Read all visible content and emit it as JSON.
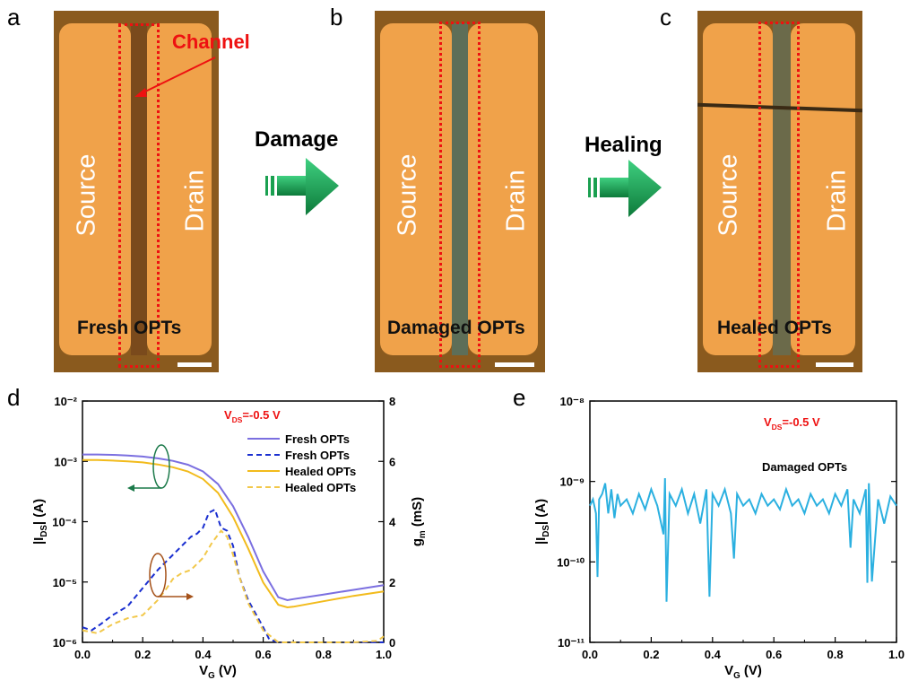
{
  "panels": {
    "a": {
      "letter": "a",
      "source": "Source",
      "drain": "Drain",
      "caption": "Fresh OPTs",
      "channel_label": "Channel"
    },
    "b": {
      "letter": "b",
      "source": "Source",
      "drain": "Drain",
      "caption": "Damaged OPTs"
    },
    "c": {
      "letter": "c",
      "source": "Source",
      "drain": "Drain",
      "caption": "Healed OPTs"
    },
    "d": {
      "letter": "d"
    },
    "e": {
      "letter": "e"
    }
  },
  "arrows": {
    "damage": "Damage",
    "healing": "Healing"
  },
  "colors": {
    "photo_pad": "#f0a24a",
    "photo_bg": "#8a5a1e",
    "frame": "#ee1111",
    "arrow": "#1aa050",
    "fresh": "#7b6fe0",
    "fresh_gm": "#1a2fd0",
    "healed": "#f2bb1c",
    "healed_gm": "#f2c84a",
    "damaged": "#2bb0e0"
  },
  "chart_data": [
    {
      "type": "line",
      "annotation": "V_DS=-0.5 V",
      "xlabel": "V_G (V)",
      "ylabel_left": "|I_DS| (A)",
      "ylabel_right": "g_m (mS)",
      "xlim": [
        0,
        1.0
      ],
      "ylim_left": [
        1e-06,
        0.01
      ],
      "ylim_right": [
        0,
        8
      ],
      "y_scale_left": "log",
      "x_ticks": [
        "0.0",
        "0.2",
        "0.4",
        "0.6",
        "0.8",
        "1.0"
      ],
      "y_ticks_left": [
        "10⁻⁶",
        "10⁻⁵",
        "10⁻⁴",
        "10⁻³",
        "10⁻²"
      ],
      "y_ticks_right": [
        "0",
        "2",
        "4",
        "6",
        "8"
      ],
      "legend_position": "top-right",
      "series": [
        {
          "name": "Fresh OPTs",
          "axis": "left",
          "style": "solid",
          "color": "#7b6fe0",
          "x": [
            0,
            0.05,
            0.1,
            0.15,
            0.2,
            0.25,
            0.3,
            0.35,
            0.4,
            0.45,
            0.5,
            0.55,
            0.6,
            0.65,
            0.68,
            0.7,
            0.8,
            0.9,
            1.0
          ],
          "y": [
            0.0013,
            0.0013,
            0.00128,
            0.00125,
            0.0012,
            0.00112,
            0.00102,
            0.00088,
            0.00068,
            0.00042,
            0.00018,
            5.6e-05,
            1.5e-05,
            5.6e-06,
            5e-06,
            5.2e-06,
            6.2e-06,
            7.4e-06,
            8.9e-06
          ]
        },
        {
          "name": "Fresh OPTs",
          "axis": "right",
          "style": "dashed",
          "color": "#1a2fd0",
          "x": [
            0,
            0.03,
            0.06,
            0.1,
            0.15,
            0.2,
            0.25,
            0.28,
            0.3,
            0.33,
            0.36,
            0.38,
            0.4,
            0.42,
            0.44,
            0.46,
            0.48,
            0.5,
            0.52,
            0.55,
            0.6,
            0.62,
            0.65,
            1.0
          ],
          "y": [
            0.5,
            0.4,
            0.6,
            0.9,
            1.2,
            1.8,
            2.4,
            2.7,
            2.9,
            3.2,
            3.5,
            3.6,
            3.8,
            4.3,
            4.4,
            3.8,
            3.7,
            3.2,
            2.2,
            1.4,
            0.5,
            0.1,
            0,
            0
          ]
        },
        {
          "name": "Healed OPTs",
          "axis": "left",
          "style": "solid",
          "color": "#f2bb1c",
          "x": [
            0,
            0.05,
            0.1,
            0.15,
            0.2,
            0.25,
            0.3,
            0.35,
            0.4,
            0.45,
            0.5,
            0.55,
            0.6,
            0.65,
            0.68,
            0.7,
            0.8,
            0.9,
            1.0
          ],
          "y": [
            0.00105,
            0.00105,
            0.00103,
            0.001,
            0.00096,
            0.00089,
            0.0008,
            0.00068,
            0.00051,
            0.0003,
            0.00012,
            3.6e-05,
            9.8e-06,
            4.2e-06,
            3.8e-06,
            3.9e-06,
            4.8e-06,
            5.9e-06,
            7e-06
          ]
        },
        {
          "name": "Healed OPTs",
          "axis": "right",
          "style": "dashed",
          "color": "#f2c84a",
          "x": [
            0,
            0.05,
            0.1,
            0.15,
            0.2,
            0.25,
            0.28,
            0.3,
            0.33,
            0.36,
            0.4,
            0.43,
            0.46,
            0.48,
            0.5,
            0.52,
            0.55,
            0.6,
            0.65,
            0.7,
            0.8,
            0.9,
            0.98,
            1.0
          ],
          "y": [
            0.4,
            0.3,
            0.6,
            0.8,
            0.9,
            1.4,
            1.8,
            2.1,
            2.3,
            2.4,
            2.8,
            3.3,
            3.7,
            3.5,
            2.9,
            2.2,
            1.3,
            0.4,
            0,
            0,
            0,
            0,
            0.05,
            0.2
          ]
        }
      ]
    },
    {
      "type": "line",
      "annotation": "V_DS=-0.5 V",
      "inner_label": "Damaged OPTs",
      "xlabel": "V_G (V)",
      "ylabel": "|I_DS| (A)",
      "xlim": [
        0,
        1.0
      ],
      "ylim": [
        1e-11,
        1e-08
      ],
      "y_scale": "log",
      "x_ticks": [
        "0.0",
        "0.2",
        "0.4",
        "0.6",
        "0.8",
        "1.0"
      ],
      "y_ticks": [
        "10⁻¹¹",
        "10⁻¹⁰",
        "10⁻⁹",
        "10⁻⁸"
      ],
      "series": [
        {
          "name": "Damaged OPTs",
          "color": "#2bb0e0",
          "x": [
            0,
            0.01,
            0.02,
            0.025,
            0.03,
            0.04,
            0.05,
            0.06,
            0.07,
            0.08,
            0.09,
            0.1,
            0.12,
            0.14,
            0.16,
            0.18,
            0.2,
            0.22,
            0.24,
            0.245,
            0.25,
            0.26,
            0.28,
            0.3,
            0.32,
            0.34,
            0.36,
            0.38,
            0.39,
            0.4,
            0.42,
            0.44,
            0.46,
            0.47,
            0.48,
            0.5,
            0.52,
            0.54,
            0.56,
            0.58,
            0.6,
            0.62,
            0.64,
            0.66,
            0.68,
            0.7,
            0.72,
            0.74,
            0.76,
            0.78,
            0.8,
            0.82,
            0.84,
            0.85,
            0.86,
            0.88,
            0.9,
            0.905,
            0.91,
            0.92,
            0.94,
            0.96,
            0.98,
            1.0
          ],
          "y": [
            5e-10,
            6e-10,
            4e-10,
            6.5e-11,
            6e-10,
            7e-10,
            9.5e-10,
            4e-10,
            8e-10,
            3.5e-10,
            7e-10,
            5e-10,
            6e-10,
            4e-10,
            7e-10,
            4.5e-10,
            8e-10,
            5e-10,
            2.2e-10,
            1.1e-09,
            3.2e-11,
            7e-10,
            5e-10,
            8e-10,
            4e-10,
            7e-10,
            3e-10,
            8e-10,
            3.7e-11,
            7e-10,
            5e-10,
            8e-10,
            4e-10,
            1.1e-10,
            7e-10,
            5e-10,
            6e-10,
            4e-10,
            7e-10,
            5e-10,
            6e-10,
            4.5e-10,
            8e-10,
            5e-10,
            6e-10,
            4e-10,
            7e-10,
            5e-10,
            6e-10,
            4e-10,
            7e-10,
            5e-10,
            8e-10,
            1.5e-10,
            6e-10,
            4e-10,
            8e-10,
            5.5e-11,
            9.5e-10,
            5.7e-11,
            6e-10,
            3e-10,
            6.5e-10,
            5e-10
          ]
        }
      ]
    }
  ]
}
